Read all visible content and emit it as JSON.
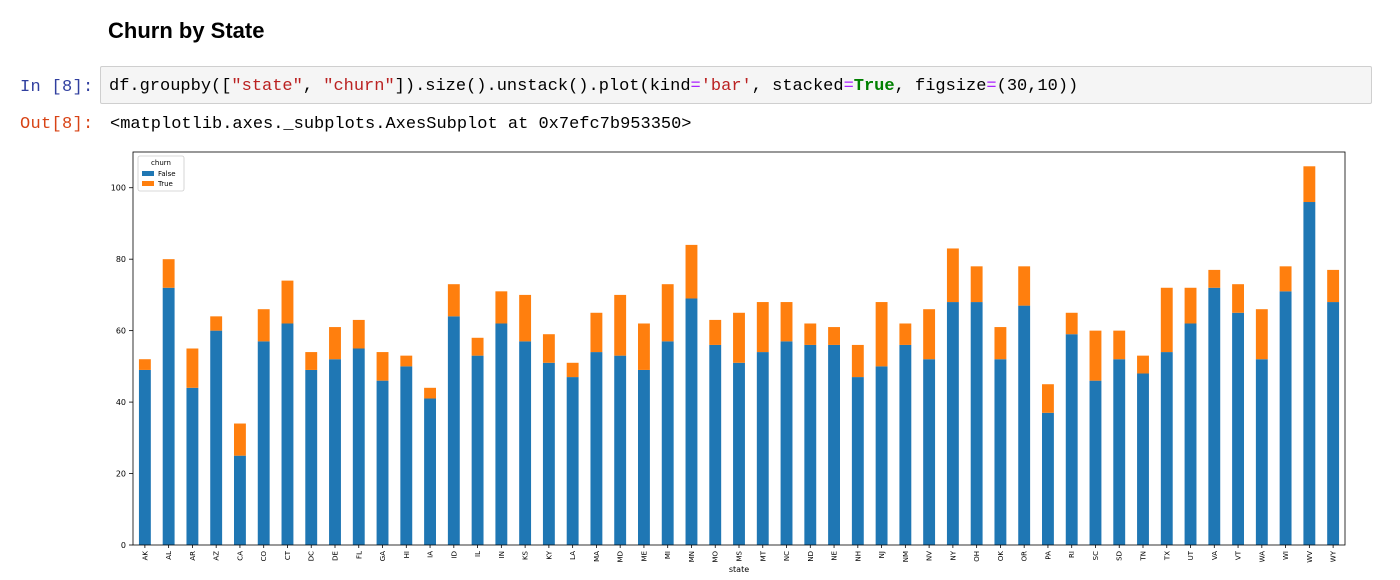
{
  "heading": "Churn by State",
  "cell": {
    "in_prompt": "In [8]:",
    "out_prompt": "Out[8]:",
    "code_parts": {
      "p1": "df.groupby([",
      "s1": "\"state\"",
      "p2": ", ",
      "s2": "\"churn\"",
      "p3": "]).size().unstack().plot(kind",
      "op1": "=",
      "s3": "'bar'",
      "p4": ", stacked",
      "op2": "=",
      "kw": "True",
      "p5": ", figsize",
      "op3": "=",
      "p6": "(30,10))"
    },
    "output_text": "<matplotlib.axes._subplots.AxesSubplot at 0x7efc7b953350>"
  },
  "chart_data": {
    "type": "bar",
    "stacked": true,
    "xlabel": "state",
    "ylabel": "",
    "ylim": [
      0,
      110
    ],
    "yticks": [
      0,
      20,
      40,
      60,
      80,
      100
    ],
    "grid": false,
    "legend": {
      "title": "churn",
      "placement": "top-left"
    },
    "categories": [
      "AK",
      "AL",
      "AR",
      "AZ",
      "CA",
      "CO",
      "CT",
      "DC",
      "DE",
      "FL",
      "GA",
      "HI",
      "IA",
      "ID",
      "IL",
      "IN",
      "KS",
      "KY",
      "LA",
      "MA",
      "MD",
      "ME",
      "MI",
      "MN",
      "MO",
      "MS",
      "MT",
      "NC",
      "ND",
      "NE",
      "NH",
      "NJ",
      "NM",
      "NV",
      "NY",
      "OH",
      "OK",
      "OR",
      "PA",
      "RI",
      "SC",
      "SD",
      "TN",
      "TX",
      "UT",
      "VA",
      "VT",
      "WA",
      "WI",
      "WV",
      "WY"
    ],
    "series": [
      {
        "name": "False",
        "color": "#1f77b4",
        "values": [
          49,
          72,
          44,
          60,
          25,
          57,
          62,
          49,
          52,
          55,
          46,
          50,
          41,
          64,
          53,
          62,
          57,
          51,
          47,
          54,
          53,
          49,
          57,
          69,
          56,
          51,
          54,
          57,
          56,
          56,
          47,
          50,
          56,
          52,
          68,
          68,
          52,
          67,
          37,
          59,
          46,
          52,
          48,
          54,
          62,
          72,
          65,
          52,
          71,
          96,
          68
        ]
      },
      {
        "name": "True",
        "color": "#ff7f0e",
        "values": [
          3,
          8,
          11,
          4,
          9,
          9,
          12,
          5,
          9,
          8,
          8,
          3,
          3,
          9,
          5,
          9,
          13,
          8,
          4,
          11,
          17,
          13,
          16,
          15,
          7,
          14,
          14,
          11,
          6,
          5,
          9,
          18,
          6,
          14,
          15,
          10,
          9,
          11,
          8,
          6,
          14,
          8,
          5,
          18,
          10,
          5,
          8,
          14,
          7,
          10,
          9
        ]
      }
    ]
  }
}
